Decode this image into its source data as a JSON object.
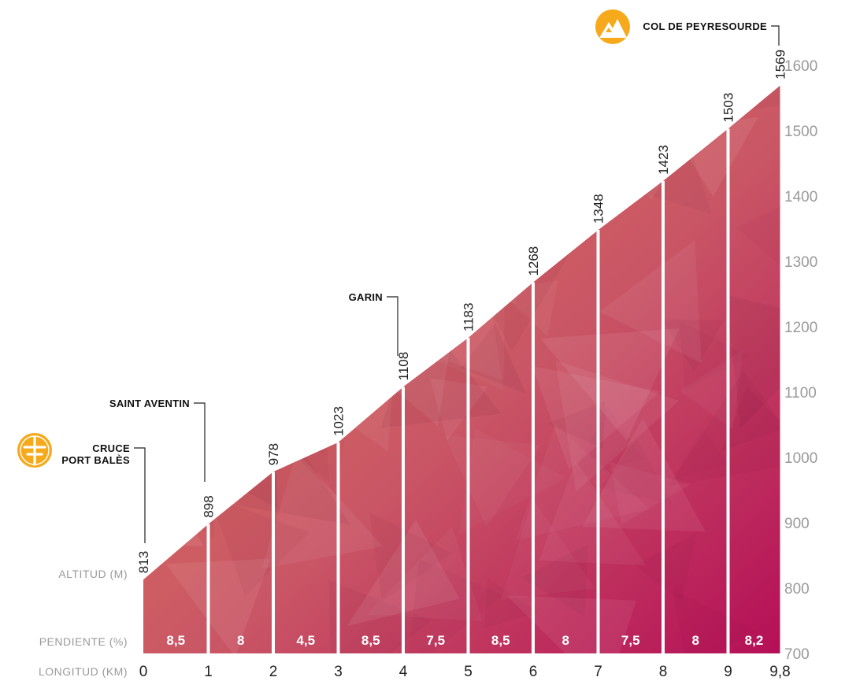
{
  "chart_data": {
    "type": "area",
    "row_labels": {
      "altitude": "ALTITUD (M)",
      "gradient": "PENDIENTE (%)",
      "distance": "LONGITUD (KM)"
    },
    "x": [
      0,
      1,
      2,
      3,
      4,
      5,
      6,
      7,
      8,
      9,
      9.8
    ],
    "x_tick_labels": [
      "0",
      "1",
      "2",
      "3",
      "4",
      "5",
      "6",
      "7",
      "8",
      "9",
      "9,8"
    ],
    "altitudes": [
      813,
      898,
      978,
      1023,
      1108,
      1183,
      1268,
      1348,
      1423,
      1503,
      1569
    ],
    "altitude_labels": [
      "813",
      "898",
      "978",
      "1023",
      "1108",
      "1183",
      "1268",
      "1348",
      "1423",
      "1503",
      "1569"
    ],
    "gradients": [
      "8,5",
      "8",
      "4,5",
      "8,5",
      "7,5",
      "8,5",
      "8",
      "7,5",
      "8",
      "8,2"
    ],
    "gradient_values": [
      8.5,
      8,
      4.5,
      8.5,
      7.5,
      8.5,
      8,
      7.5,
      8,
      8.2
    ],
    "ylim": [
      700,
      1600
    ],
    "y_ticks": [
      700,
      800,
      900,
      1000,
      1100,
      1200,
      1300,
      1400,
      1500,
      1600
    ],
    "y_tick_labels": [
      "700",
      "800",
      "900",
      "1000",
      "1100",
      "1200",
      "1300",
      "1400",
      "1500",
      "1600"
    ],
    "places": [
      {
        "lines": [
          "CRUCE",
          "PORT BALÈS"
        ],
        "km": 0,
        "icon": "cross-icon"
      },
      {
        "lines": [
          "SAINT AVENTIN"
        ],
        "km": 1,
        "icon": ""
      },
      {
        "lines": [
          "GARIN"
        ],
        "km": 4,
        "icon": ""
      },
      {
        "lines": [
          "COL DE PEYRESOURDE"
        ],
        "km": 9.8,
        "icon": "mountain-icon"
      }
    ],
    "colors": {
      "low": "#e07258",
      "high": "#b8105a",
      "icon": "#f6a91b",
      "leader": "#222222"
    }
  }
}
